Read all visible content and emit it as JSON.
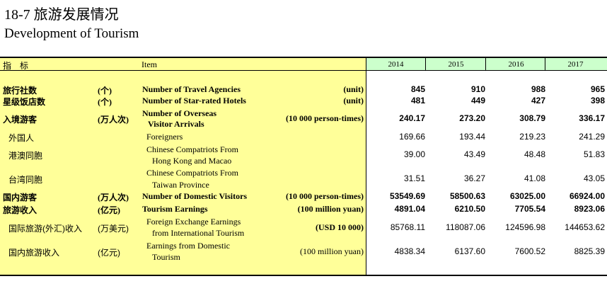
{
  "title": {
    "cn": "18-7  旅游发展情况",
    "en": "Development of Tourism"
  },
  "header": {
    "indicator": "指　标",
    "item": "Item",
    "years": [
      "2014",
      "2015",
      "2016",
      "2017"
    ]
  },
  "rows": [
    {
      "cn": "旅行社数",
      "unit_cn": "(个)",
      "en": [
        "Number of Travel Agencies"
      ],
      "unit_en": "(unit)",
      "values": [
        "845",
        "910",
        "988",
        "965"
      ]
    },
    {
      "cn": "星级饭店数",
      "unit_cn": "(个)",
      "en": [
        "Number of Star-rated Hotels"
      ],
      "unit_en": "(unit)",
      "values": [
        "481",
        "449",
        "427",
        "398"
      ]
    },
    {
      "cn": "入境游客",
      "unit_cn": "(万人次)",
      "en": [
        "Number of Overseas",
        "Visitor Arrivals"
      ],
      "unit_en": "(10 000 person-times)",
      "values": [
        "240.17",
        "273.20",
        "308.79",
        "336.17"
      ]
    },
    {
      "cn": "外国人",
      "unit_cn": "",
      "en": [
        "Foreigners"
      ],
      "unit_en": "",
      "values": [
        "169.66",
        "193.44",
        "219.23",
        "241.29"
      ]
    },
    {
      "cn": "港澳同胞",
      "unit_cn": "",
      "en": [
        "Chinese Compatriots From",
        "Hong Kong and Macao"
      ],
      "unit_en": "",
      "values": [
        "39.00",
        "43.49",
        "48.48",
        "51.83"
      ]
    },
    {
      "cn": "台湾同胞",
      "unit_cn": "",
      "en": [
        "Chinese Compatriots From",
        "Taiwan Province"
      ],
      "unit_en": "",
      "values": [
        "31.51",
        "36.27",
        "41.08",
        "43.05"
      ]
    },
    {
      "cn": "国内游客",
      "unit_cn": "(万人次)",
      "en": [
        "Number of Domestic Visitors"
      ],
      "unit_en": "(10 000 person-times)",
      "values": [
        "53549.69",
        "58500.63",
        "63025.00",
        "66924.00"
      ]
    },
    {
      "cn": "旅游收入",
      "unit_cn": "(亿元)",
      "en": [
        "Tourism Earnings"
      ],
      "unit_en": "(100 million yuan)",
      "values": [
        "4891.04",
        "6210.50",
        "7705.54",
        "8923.06"
      ]
    },
    {
      "cn": "国际旅游(外汇)收入",
      "unit_cn": "(万美元)",
      "en": [
        "Foreign Exchange Earnings",
        "from International Tourism"
      ],
      "unit_en": "(USD 10 000)",
      "values": [
        "85768.11",
        "118087.06",
        "124596.98",
        "144653.62"
      ]
    },
    {
      "cn": "国内旅游收入",
      "unit_cn": "(亿元)",
      "en": [
        "Earnings from Domestic",
        "Tourism"
      ],
      "unit_en": "(100 million yuan)",
      "values": [
        "4838.34",
        "6137.60",
        "7600.52",
        "8825.39"
      ]
    }
  ],
  "colors": {
    "label_background": "#ffff99",
    "header_background": "#ccffcc"
  }
}
